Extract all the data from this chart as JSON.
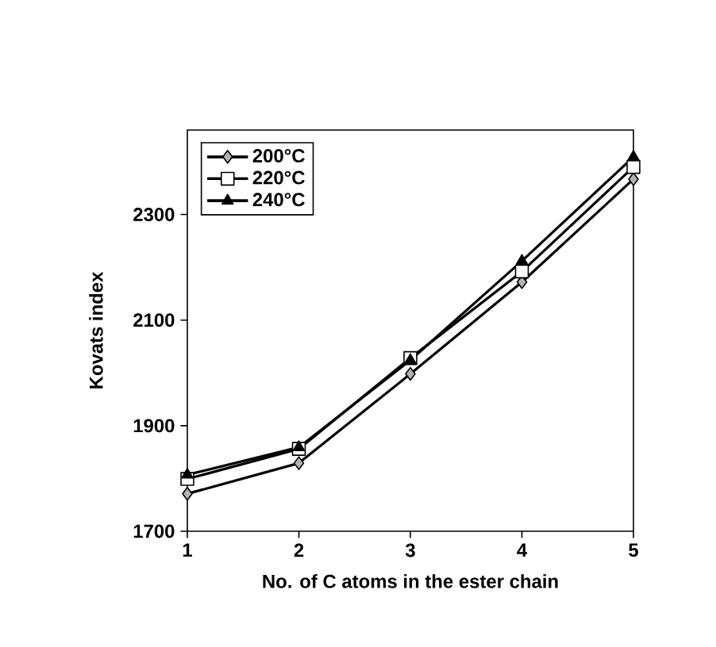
{
  "chart_data": {
    "type": "line",
    "xlabel": "No. of C atoms in the ester chain",
    "ylabel": "Kovats index",
    "x": [
      1,
      2,
      3,
      4,
      5
    ],
    "series": [
      {
        "name": "200°C",
        "color": "#000000",
        "marker": "diamond",
        "values": [
          1771,
          1829,
          1998,
          2172,
          2367
        ]
      },
      {
        "name": "220°C",
        "color": "#000000",
        "marker": "square",
        "values": [
          1799,
          1856,
          2028,
          2192,
          2390
        ]
      },
      {
        "name": "240°C",
        "color": "#000000",
        "marker": "triangle",
        "values": [
          1807,
          1859,
          2024,
          2212,
          2409
        ]
      }
    ],
    "xlim": [
      1,
      5
    ],
    "ylim": [
      1700,
      2460
    ],
    "xticks": [
      1,
      2,
      3,
      4,
      5
    ],
    "yticks": [
      1700,
      1900,
      2100,
      2300
    ],
    "grid": false,
    "legend": "top left",
    "line_style": "solid"
  }
}
